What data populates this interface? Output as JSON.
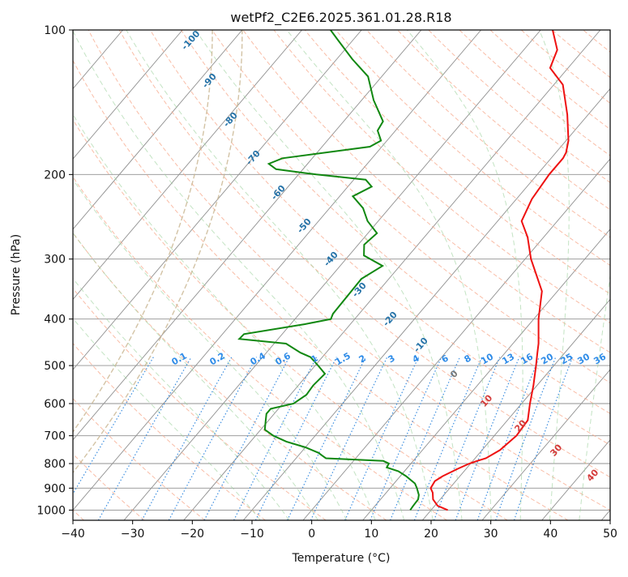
{
  "chart_data": {
    "type": "skew-t",
    "title": "wetPf2_C2E6.2025.361.01.28.R18",
    "xlabel": "Temperature (°C)",
    "ylabel": "Pressure (hPa)",
    "xlim": [
      -40,
      50
    ],
    "ylim": [
      1050,
      100
    ],
    "y_scale": "log",
    "grid": true,
    "x_ticks": [
      "−40",
      "−30",
      "−20",
      "−10",
      "0",
      "10",
      "20",
      "30",
      "40",
      "50"
    ],
    "y_ticks": [
      "100",
      "200",
      "300",
      "400",
      "500",
      "600",
      "700",
      "800",
      "900",
      "1000"
    ],
    "colors": {
      "temperature": "#ee1111",
      "dewpoint": "#118811",
      "dry_adiabats": "#f7a78a",
      "moist_adiabats": "#9bd19b",
      "mixing_ratio": "#3e8fe0",
      "isotherms": "#909090",
      "saturated_wetbulb": "#c8b48e",
      "dry_adiabat_labels": "#2673a8",
      "moist_adiabat_labels": "#d43a3a",
      "mixing_ratio_labels": "#2f8ce8"
    },
    "series": [
      {
        "values_axis": "temperature_celsius_at_pressure",
        "points": [
          [
            1000,
            22.8
          ],
          [
            980,
            20.5
          ],
          [
            950,
            18.8
          ],
          [
            920,
            17.8
          ],
          [
            900,
            16.8
          ],
          [
            870,
            16.5
          ],
          [
            850,
            17.1
          ],
          [
            820,
            18.6
          ],
          [
            800,
            19.8
          ],
          [
            790,
            20.7
          ],
          [
            780,
            21.8
          ],
          [
            750,
            23.0
          ],
          [
            700,
            23.7
          ],
          [
            650,
            23.4
          ],
          [
            600,
            21.4
          ],
          [
            550,
            19.4
          ],
          [
            500,
            17.0
          ],
          [
            470,
            15.4
          ],
          [
            450,
            14.3
          ],
          [
            400,
            10.8
          ],
          [
            350,
            7.4
          ],
          [
            300,
            1.0
          ],
          [
            270,
            -2.7
          ],
          [
            250,
            -6.0
          ],
          [
            225,
            -7.4
          ],
          [
            200,
            -8.0
          ],
          [
            185,
            -8.0
          ],
          [
            180,
            -8.3
          ],
          [
            170,
            -9.6
          ],
          [
            150,
            -13.5
          ],
          [
            130,
            -18.5
          ],
          [
            120,
            -23.0
          ],
          [
            110,
            -24.4
          ],
          [
            100,
            -28.0
          ]
        ]
      },
      {
        "values_axis": "dewpoint_celsius_at_pressure",
        "points": [
          [
            1000,
            16.5
          ],
          [
            980,
            16.4
          ],
          [
            950,
            16.3
          ],
          [
            930,
            15.8
          ],
          [
            900,
            14.5
          ],
          [
            880,
            13.5
          ],
          [
            850,
            11.0
          ],
          [
            830,
            9.0
          ],
          [
            815,
            6.5
          ],
          [
            800,
            6.3
          ],
          [
            790,
            5.0
          ],
          [
            780,
            -5.0
          ],
          [
            770,
            -6.0
          ],
          [
            760,
            -7.0
          ],
          [
            740,
            -10.0
          ],
          [
            720,
            -14.0
          ],
          [
            700,
            -17.0
          ],
          [
            680,
            -19.3
          ],
          [
            650,
            -20.5
          ],
          [
            630,
            -21.3
          ],
          [
            615,
            -21.3
          ],
          [
            600,
            -18.2
          ],
          [
            575,
            -17.3
          ],
          [
            550,
            -17.5
          ],
          [
            520,
            -17.2
          ],
          [
            500,
            -19.5
          ],
          [
            480,
            -22.0
          ],
          [
            470,
            -24.3
          ],
          [
            450,
            -28.0
          ],
          [
            440,
            -36.5
          ],
          [
            430,
            -36.4
          ],
          [
            410,
            -27.6
          ],
          [
            400,
            -24.0
          ],
          [
            390,
            -24.4
          ],
          [
            330,
            -24.6
          ],
          [
            310,
            -22.9
          ],
          [
            295,
            -27.5
          ],
          [
            280,
            -29.0
          ],
          [
            265,
            -28.5
          ],
          [
            250,
            -31.8
          ],
          [
            235,
            -34.4
          ],
          [
            222,
            -37.8
          ],
          [
            212,
            -36.0
          ],
          [
            205,
            -38.0
          ],
          [
            200,
            -47.0
          ],
          [
            195,
            -54.5
          ],
          [
            190,
            -56.5
          ],
          [
            185,
            -55.0
          ],
          [
            175,
            -42.0
          ],
          [
            170,
            -41.0
          ],
          [
            162,
            -43.0
          ],
          [
            155,
            -43.4
          ],
          [
            140,
            -48.0
          ],
          [
            125,
            -52.3
          ],
          [
            115,
            -57.4
          ],
          [
            105,
            -62.5
          ],
          [
            100,
            -65.2
          ]
        ]
      }
    ],
    "dry_adiabat_labels": [
      "-100",
      "-90",
      "-80",
      "-70",
      "-60",
      "-50",
      "-40",
      "-30",
      "-20",
      "-10",
      "0"
    ],
    "moist_adiabat_labels": [
      "10",
      "20",
      "30",
      "40"
    ],
    "mixing_ratio_labels": [
      "0.1",
      "0.2",
      "0.4",
      "0.6",
      "1",
      "1.5",
      "2",
      "3",
      "4",
      "6",
      "8",
      "10",
      "13",
      "16",
      "20",
      "25",
      "30",
      "36"
    ]
  }
}
